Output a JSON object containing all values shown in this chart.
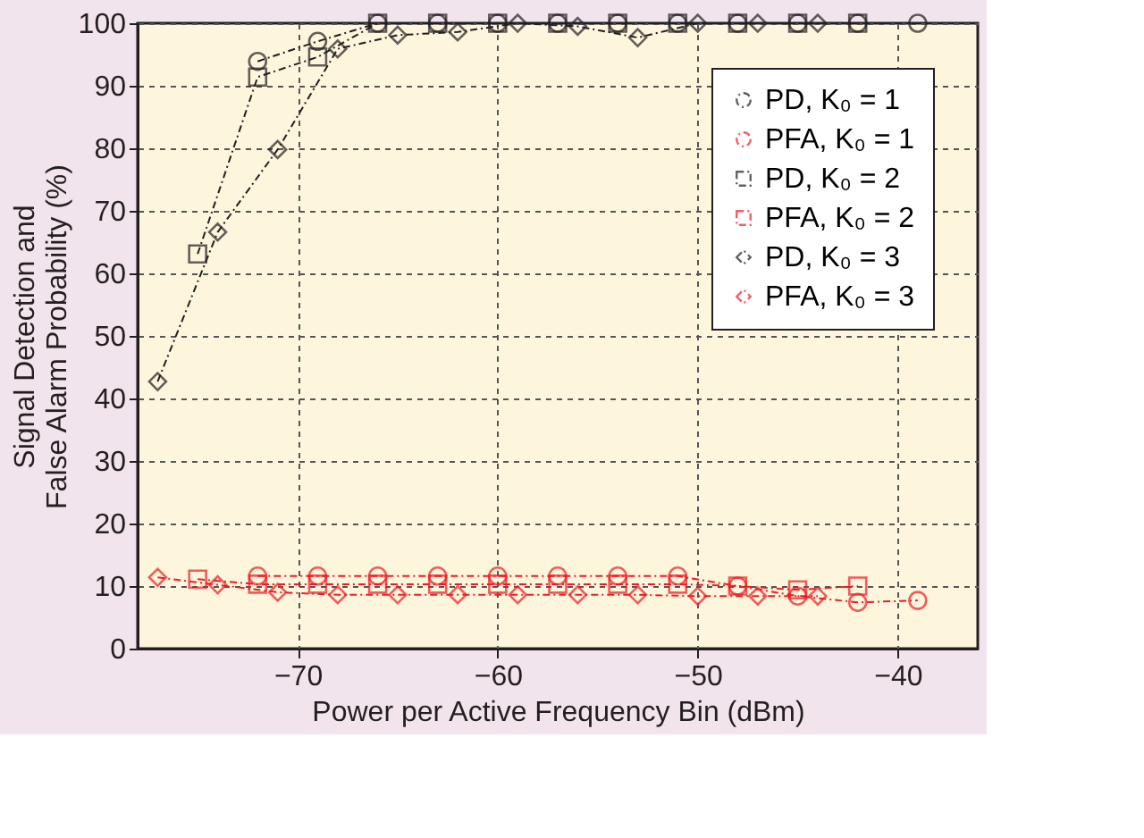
{
  "chart_data": {
    "type": "line",
    "xlabel": "Power per Active Frequency Bin (dBm)",
    "ylabel": "Signal Detection and\nFalse Alarm Probability (%)",
    "xlim": [
      -78,
      -36
    ],
    "xticks": [
      -70,
      -60,
      -50,
      -40
    ],
    "ylim": [
      0,
      100
    ],
    "yticks": [
      0,
      10,
      20,
      30,
      40,
      50,
      60,
      70,
      80,
      90,
      100
    ],
    "grid": true,
    "legend": "top right",
    "line_style": "dashed",
    "series": [
      {
        "name": "PD, K₀ = 1",
        "color": "#231f20",
        "marker": "circle",
        "x": [
          -72,
          -69,
          -66,
          -63,
          -60,
          -57,
          -54,
          -51,
          -48,
          -45,
          -42,
          -39
        ],
        "values": [
          93.9,
          97.1,
          100,
          100,
          100,
          100,
          100,
          100,
          100,
          100,
          100,
          100
        ]
      },
      {
        "name": "PFA, K₀ = 1",
        "color": "#ed1c24",
        "marker": "circle",
        "x": [
          -72,
          -69,
          -66,
          -63,
          -60,
          -57,
          -54,
          -51,
          -48,
          -45,
          -42,
          -39
        ],
        "values": [
          11.6,
          11.6,
          11.6,
          11.6,
          11.6,
          11.6,
          11.6,
          11.6,
          10.0,
          8.4,
          7.4,
          7.7
        ]
      },
      {
        "name": "PD, K₀ = 2",
        "color": "#231f20",
        "marker": "square",
        "x": [
          -75,
          -72,
          -69,
          -66,
          -63,
          -60,
          -57,
          -54,
          -51,
          -48,
          -45,
          -42
        ],
        "values": [
          63.1,
          91.4,
          94.6,
          100,
          100,
          100,
          100,
          100,
          100,
          100,
          100,
          100
        ]
      },
      {
        "name": "PFA, K₀ = 2",
        "color": "#ed1c24",
        "marker": "square",
        "x": [
          -75,
          -72,
          -69,
          -66,
          -63,
          -60,
          -57,
          -54,
          -51,
          -48,
          -45,
          -42
        ],
        "values": [
          11.1,
          10.3,
          10.3,
          10.3,
          10.3,
          10.3,
          10.3,
          10.3,
          10.3,
          10.0,
          9.4,
          10.0
        ]
      },
      {
        "name": "PD, K₀ = 3",
        "color": "#231f20",
        "marker": "diamond",
        "x": [
          -77,
          -74,
          -71,
          -68,
          -65,
          -62,
          -59,
          -56,
          -53,
          -50,
          -47,
          -44
        ],
        "values": [
          42.7,
          66.6,
          79.8,
          95.9,
          98.1,
          98.6,
          100,
          99.5,
          97.7,
          100,
          100,
          100
        ]
      },
      {
        "name": "PFA, K₀ = 3",
        "color": "#ed1c24",
        "marker": "diamond",
        "x": [
          -77,
          -74,
          -71,
          -68,
          -65,
          -62,
          -59,
          -56,
          -53,
          -50,
          -47,
          -44
        ],
        "values": [
          11.4,
          10.2,
          9.0,
          8.6,
          8.6,
          8.6,
          8.6,
          8.6,
          8.6,
          8.4,
          8.4,
          8.4
        ]
      }
    ]
  }
}
